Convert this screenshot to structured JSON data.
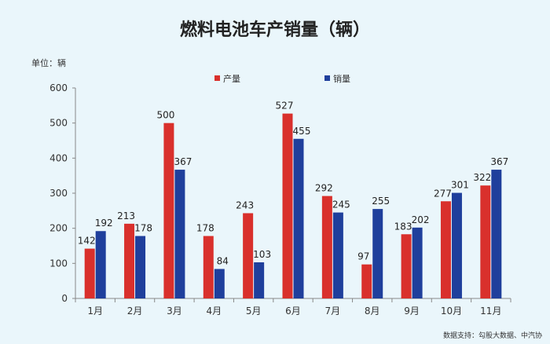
{
  "chart_data": {
    "type": "bar",
    "title": "燃料电池车产销量（辆）",
    "unit_label": "单位：辆",
    "source": "数据支持：勾股大数据、中汽协",
    "categories": [
      "1月",
      "2月",
      "3月",
      "4月",
      "5月",
      "6月",
      "7月",
      "8月",
      "9月",
      "10月",
      "11月"
    ],
    "series": [
      {
        "name": "产量",
        "color": "#d9302c",
        "values": [
          142,
          213,
          500,
          178,
          243,
          527,
          292,
          97,
          183,
          277,
          322
        ]
      },
      {
        "name": "销量",
        "color": "#1f3f9c",
        "values": [
          192,
          178,
          367,
          84,
          103,
          455,
          245,
          255,
          202,
          301,
          367
        ]
      }
    ],
    "ylim": [
      0,
      600
    ],
    "yticks": [
      0,
      100,
      200,
      300,
      400,
      500,
      600
    ],
    "legend": "top-center",
    "grid": false
  }
}
